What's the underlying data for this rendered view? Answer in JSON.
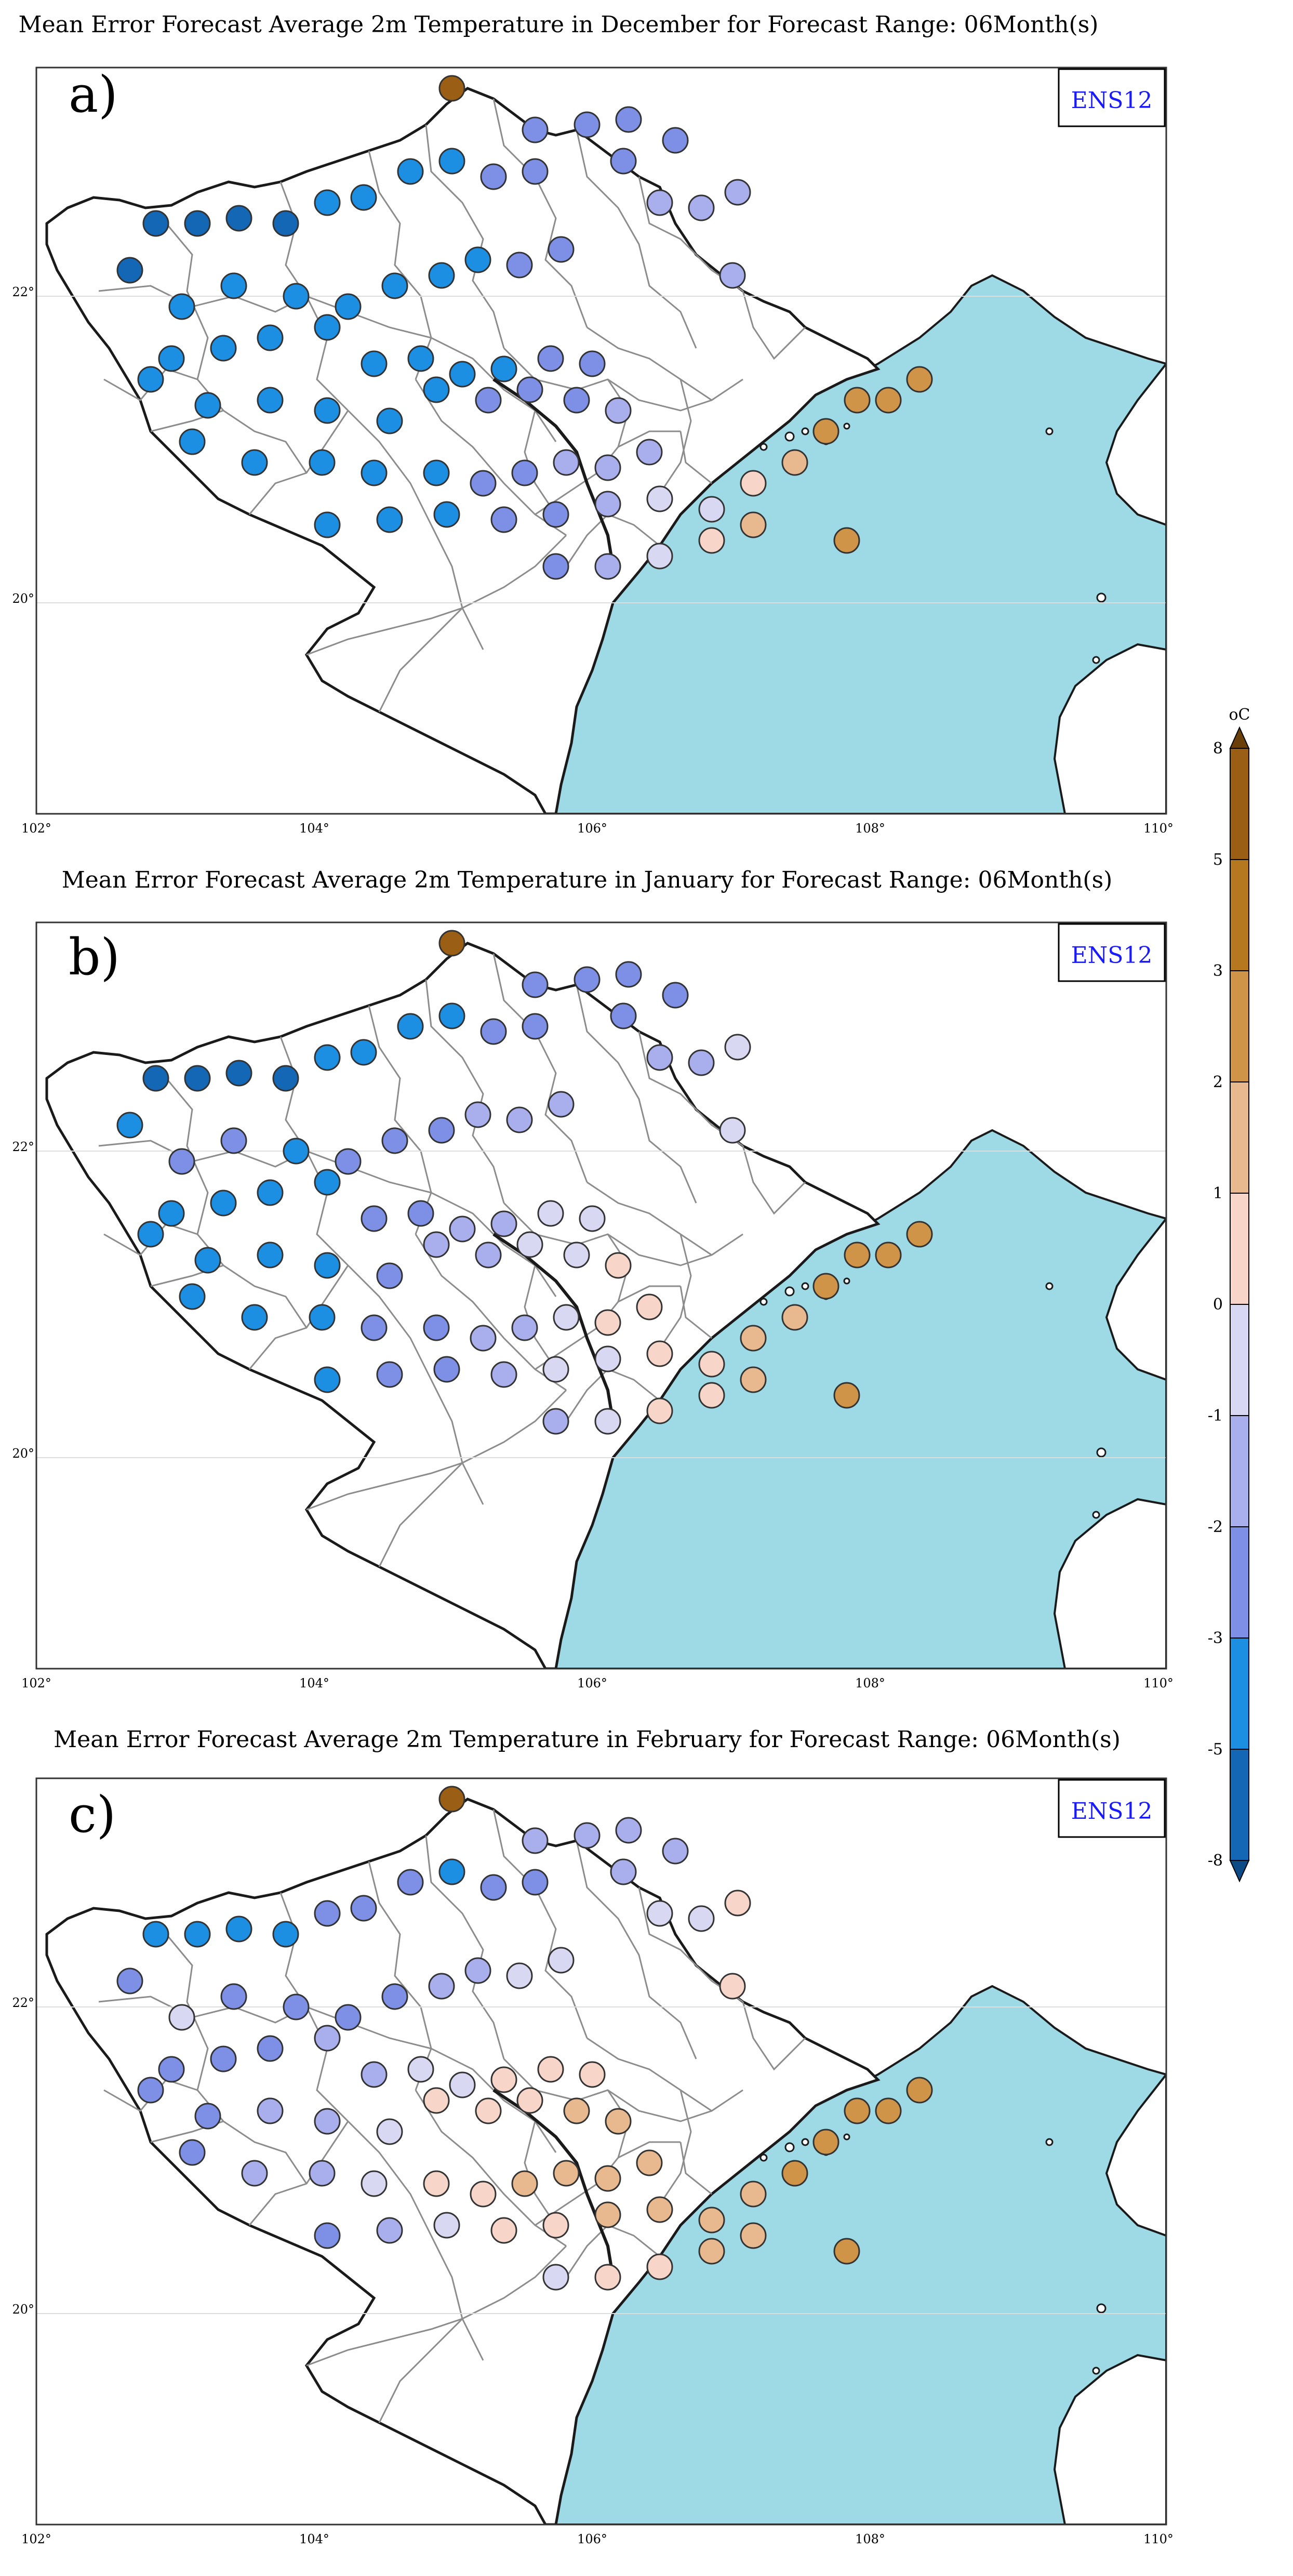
{
  "panels": [
    {
      "id": "a",
      "title": "Mean Error Forecast Average 2m Temperature in December for  Forecast Range: 06Month(s)",
      "label": "a)",
      "legend_box": "ENS12"
    },
    {
      "id": "b",
      "title": "Mean Error Forecast Average 2m Temperature in January for  Forecast Range: 06Month(s)",
      "label": "b)",
      "legend_box": "ENS12"
    },
    {
      "id": "c",
      "title": "Mean Error Forecast Average 2m Temperature in February for  Forecast Range: 06Month(s)",
      "label": "c)",
      "legend_box": "ENS12"
    }
  ],
  "axes": {
    "lon_ticks": [
      "102°",
      "104°",
      "106°",
      "108°",
      "110°"
    ],
    "lat_ticks": [
      "22°",
      "20°"
    ]
  },
  "colorbar": {
    "unit": "oC",
    "levels": [
      "8",
      "5",
      "3",
      "2",
      "1",
      "0",
      "-1",
      "-2",
      "-3",
      "-5",
      "-8"
    ],
    "colors": [
      "#6b3f0a",
      "#9a5f14",
      "#b5781f",
      "#cf9447",
      "#e8b88f",
      "#f7d6c9",
      "#d8d8f2",
      "#a9aeec",
      "#7e90e6",
      "#1d8fe2",
      "#1467b5",
      "#0c4b86"
    ]
  },
  "colors": {
    "sea": "#9ed9e6",
    "land": "#ffffff",
    "border": "#1a1a1a",
    "province": "#8c8c8c",
    "legend_text": "#1a1aff"
  }
}
